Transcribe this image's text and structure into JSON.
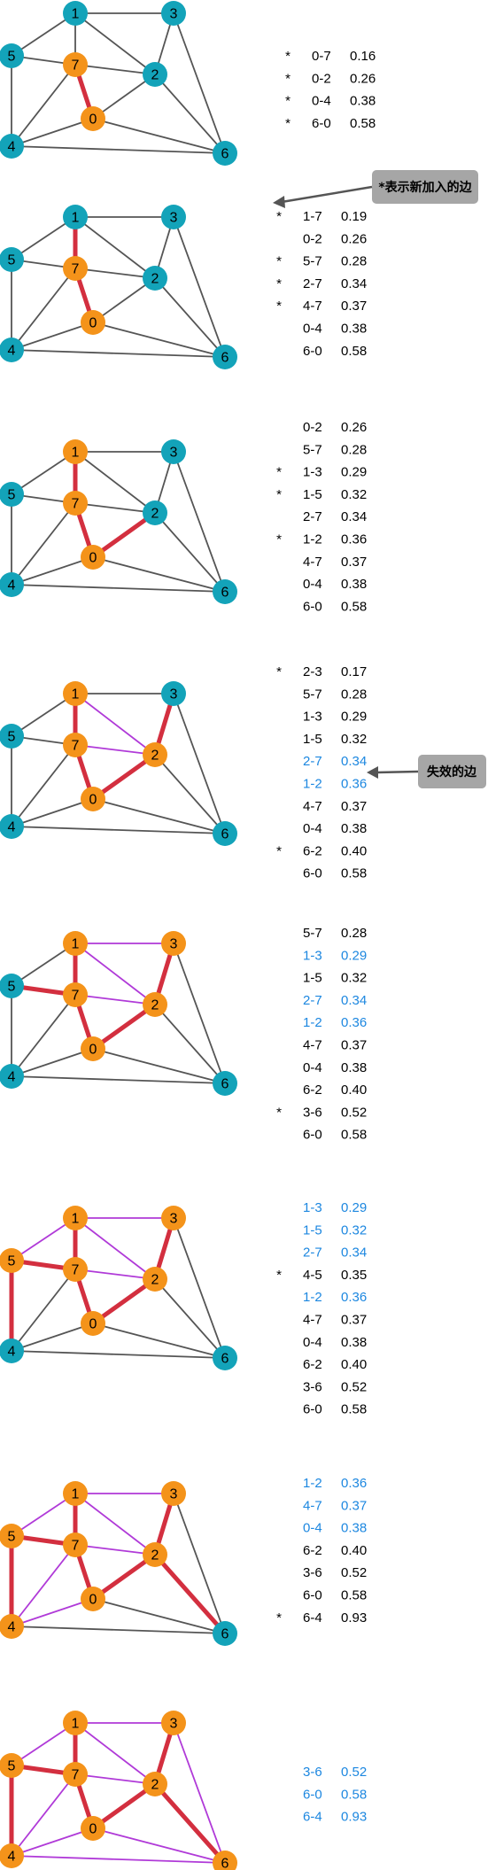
{
  "colors": {
    "teal": "#13a3b9",
    "orange": "#f4931a",
    "gray_edge": "#555555",
    "red_edge": "#d32f3f",
    "purple_edge": "#b03ad8",
    "blue_text": "#1c87e0",
    "black_text": "#000000",
    "callout_bg": "#a6a6a6",
    "arrow": "#555555"
  },
  "edges": [
    [
      "1",
      "3"
    ],
    [
      "1",
      "5"
    ],
    [
      "1",
      "7"
    ],
    [
      "1",
      "2"
    ],
    [
      "3",
      "2"
    ],
    [
      "3",
      "6"
    ],
    [
      "5",
      "7"
    ],
    [
      "5",
      "4"
    ],
    [
      "7",
      "2"
    ],
    [
      "7",
      "0"
    ],
    [
      "7",
      "4"
    ],
    [
      "2",
      "0"
    ],
    [
      "2",
      "6"
    ],
    [
      "0",
      "4"
    ],
    [
      "0",
      "6"
    ],
    [
      "4",
      "6"
    ]
  ],
  "steps": [
    {
      "orange_nodes": [
        "0",
        "7"
      ],
      "red_edges": [
        "0-7"
      ],
      "purple_edges": [],
      "rows": [
        {
          "mark": "*",
          "edge": "0-7",
          "weight": "0.16",
          "invalid": false
        },
        {
          "mark": "*",
          "edge": "0-2",
          "weight": "0.26",
          "invalid": false
        },
        {
          "mark": "*",
          "edge": "0-4",
          "weight": "0.38",
          "invalid": false
        },
        {
          "mark": "*",
          "edge": "6-0",
          "weight": "0.58",
          "invalid": false
        }
      ]
    },
    {
      "orange_nodes": [
        "0",
        "7"
      ],
      "red_edges": [
        "0-7",
        "1-7"
      ],
      "purple_edges": [],
      "rows": [
        {
          "mark": "*",
          "edge": "1-7",
          "weight": "0.19",
          "invalid": false
        },
        {
          "mark": "",
          "edge": "0-2",
          "weight": "0.26",
          "invalid": false
        },
        {
          "mark": "*",
          "edge": "5-7",
          "weight": "0.28",
          "invalid": false
        },
        {
          "mark": "*",
          "edge": "2-7",
          "weight": "0.34",
          "invalid": false
        },
        {
          "mark": "*",
          "edge": "4-7",
          "weight": "0.37",
          "invalid": false
        },
        {
          "mark": "",
          "edge": "0-4",
          "weight": "0.38",
          "invalid": false
        },
        {
          "mark": "",
          "edge": "6-0",
          "weight": "0.58",
          "invalid": false
        }
      ]
    },
    {
      "orange_nodes": [
        "0",
        "7",
        "1"
      ],
      "red_edges": [
        "0-7",
        "1-7",
        "0-2"
      ],
      "purple_edges": [],
      "rows": [
        {
          "mark": "",
          "edge": "0-2",
          "weight": "0.26",
          "invalid": false
        },
        {
          "mark": "",
          "edge": "5-7",
          "weight": "0.28",
          "invalid": false
        },
        {
          "mark": "*",
          "edge": "1-3",
          "weight": "0.29",
          "invalid": false
        },
        {
          "mark": "*",
          "edge": "1-5",
          "weight": "0.32",
          "invalid": false
        },
        {
          "mark": "",
          "edge": "2-7",
          "weight": "0.34",
          "invalid": false
        },
        {
          "mark": "*",
          "edge": "1-2",
          "weight": "0.36",
          "invalid": false
        },
        {
          "mark": "",
          "edge": "4-7",
          "weight": "0.37",
          "invalid": false
        },
        {
          "mark": "",
          "edge": "0-4",
          "weight": "0.38",
          "invalid": false
        },
        {
          "mark": "",
          "edge": "6-0",
          "weight": "0.58",
          "invalid": false
        }
      ]
    },
    {
      "orange_nodes": [
        "0",
        "7",
        "1",
        "2"
      ],
      "red_edges": [
        "0-7",
        "1-7",
        "0-2",
        "2-3"
      ],
      "purple_edges": [
        "1-2",
        "2-7"
      ],
      "rows": [
        {
          "mark": "*",
          "edge": "2-3",
          "weight": "0.17",
          "invalid": false
        },
        {
          "mark": "",
          "edge": "5-7",
          "weight": "0.28",
          "invalid": false
        },
        {
          "mark": "",
          "edge": "1-3",
          "weight": "0.29",
          "invalid": false
        },
        {
          "mark": "",
          "edge": "1-5",
          "weight": "0.32",
          "invalid": false
        },
        {
          "mark": "",
          "edge": "2-7",
          "weight": "0.34",
          "invalid": true
        },
        {
          "mark": "",
          "edge": "1-2",
          "weight": "0.36",
          "invalid": true
        },
        {
          "mark": "",
          "edge": "4-7",
          "weight": "0.37",
          "invalid": false
        },
        {
          "mark": "",
          "edge": "0-4",
          "weight": "0.38",
          "invalid": false
        },
        {
          "mark": "*",
          "edge": "6-2",
          "weight": "0.40",
          "invalid": false
        },
        {
          "mark": "",
          "edge": "6-0",
          "weight": "0.58",
          "invalid": false
        }
      ]
    },
    {
      "orange_nodes": [
        "0",
        "7",
        "1",
        "2",
        "3"
      ],
      "red_edges": [
        "0-7",
        "1-7",
        "0-2",
        "2-3",
        "5-7"
      ],
      "purple_edges": [
        "1-2",
        "2-7",
        "1-3"
      ],
      "rows": [
        {
          "mark": "",
          "edge": "5-7",
          "weight": "0.28",
          "invalid": false
        },
        {
          "mark": "",
          "edge": "1-3",
          "weight": "0.29",
          "invalid": true
        },
        {
          "mark": "",
          "edge": "1-5",
          "weight": "0.32",
          "invalid": false
        },
        {
          "mark": "",
          "edge": "2-7",
          "weight": "0.34",
          "invalid": true
        },
        {
          "mark": "",
          "edge": "1-2",
          "weight": "0.36",
          "invalid": true
        },
        {
          "mark": "",
          "edge": "4-7",
          "weight": "0.37",
          "invalid": false
        },
        {
          "mark": "",
          "edge": "0-4",
          "weight": "0.38",
          "invalid": false
        },
        {
          "mark": "",
          "edge": "6-2",
          "weight": "0.40",
          "invalid": false
        },
        {
          "mark": "*",
          "edge": "3-6",
          "weight": "0.52",
          "invalid": false
        },
        {
          "mark": "",
          "edge": "6-0",
          "weight": "0.58",
          "invalid": false
        }
      ]
    },
    {
      "orange_nodes": [
        "0",
        "7",
        "1",
        "2",
        "3",
        "5"
      ],
      "red_edges": [
        "0-7",
        "1-7",
        "0-2",
        "2-3",
        "5-7",
        "4-5"
      ],
      "purple_edges": [
        "1-2",
        "2-7",
        "1-3",
        "1-5"
      ],
      "rows": [
        {
          "mark": "",
          "edge": "1-3",
          "weight": "0.29",
          "invalid": true
        },
        {
          "mark": "",
          "edge": "1-5",
          "weight": "0.32",
          "invalid": true
        },
        {
          "mark": "",
          "edge": "2-7",
          "weight": "0.34",
          "invalid": true
        },
        {
          "mark": "*",
          "edge": "4-5",
          "weight": "0.35",
          "invalid": false
        },
        {
          "mark": "",
          "edge": "1-2",
          "weight": "0.36",
          "invalid": true
        },
        {
          "mark": "",
          "edge": "4-7",
          "weight": "0.37",
          "invalid": false
        },
        {
          "mark": "",
          "edge": "0-4",
          "weight": "0.38",
          "invalid": false
        },
        {
          "mark": "",
          "edge": "6-2",
          "weight": "0.40",
          "invalid": false
        },
        {
          "mark": "",
          "edge": "3-6",
          "weight": "0.52",
          "invalid": false
        },
        {
          "mark": "",
          "edge": "6-0",
          "weight": "0.58",
          "invalid": false
        }
      ]
    },
    {
      "orange_nodes": [
        "0",
        "7",
        "1",
        "2",
        "3",
        "5",
        "4"
      ],
      "red_edges": [
        "0-7",
        "1-7",
        "0-2",
        "2-3",
        "5-7",
        "4-5",
        "2-6"
      ],
      "purple_edges": [
        "1-2",
        "2-7",
        "1-3",
        "1-5",
        "4-7",
        "0-4"
      ],
      "rows": [
        {
          "mark": "",
          "edge": "1-2",
          "weight": "0.36",
          "invalid": true
        },
        {
          "mark": "",
          "edge": "4-7",
          "weight": "0.37",
          "invalid": true
        },
        {
          "mark": "",
          "edge": "0-4",
          "weight": "0.38",
          "invalid": true
        },
        {
          "mark": "",
          "edge": "6-2",
          "weight": "0.40",
          "invalid": false
        },
        {
          "mark": "",
          "edge": "3-6",
          "weight": "0.52",
          "invalid": false
        },
        {
          "mark": "",
          "edge": "6-0",
          "weight": "0.58",
          "invalid": false
        },
        {
          "mark": "*",
          "edge": "6-4",
          "weight": "0.93",
          "invalid": false
        }
      ]
    },
    {
      "orange_nodes": [
        "0",
        "7",
        "1",
        "2",
        "3",
        "5",
        "4",
        "6"
      ],
      "red_edges": [
        "0-7",
        "1-7",
        "0-2",
        "2-3",
        "5-7",
        "4-5",
        "2-6"
      ],
      "purple_edges": [
        "1-2",
        "2-7",
        "1-3",
        "1-5",
        "4-7",
        "0-4",
        "3-6",
        "0-6",
        "4-6"
      ],
      "rows": [
        {
          "mark": "",
          "edge": "3-6",
          "weight": "0.52",
          "invalid": true
        },
        {
          "mark": "",
          "edge": "6-0",
          "weight": "0.58",
          "invalid": true
        },
        {
          "mark": "",
          "edge": "6-4",
          "weight": "0.93",
          "invalid": true
        }
      ]
    }
  ],
  "callouts": {
    "new_edge": "*表示新加入的边",
    "invalid_edge": "失效的边"
  }
}
